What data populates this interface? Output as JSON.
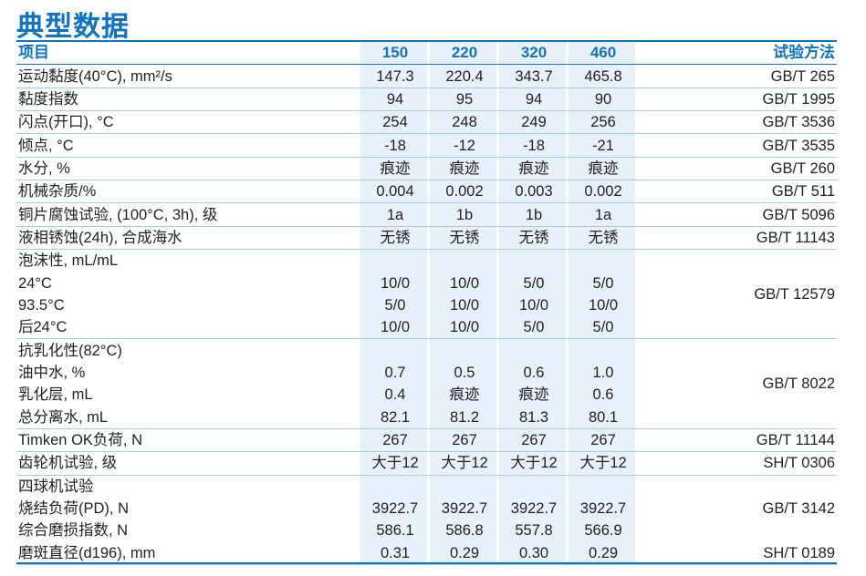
{
  "title": "典型数据",
  "header": {
    "item": "项目",
    "grades": [
      "150",
      "220",
      "320",
      "460"
    ],
    "method": "试验方法"
  },
  "rows": [
    {
      "item": "运动黏度(40°C), mm²/s",
      "values": [
        "147.3",
        "220.4",
        "343.7",
        "465.8"
      ],
      "method": "GB/T 265"
    },
    {
      "item": "黏度指数",
      "values": [
        "94",
        "95",
        "94",
        "90"
      ],
      "method": "GB/T 1995"
    },
    {
      "item": "闪点(开口), °C",
      "values": [
        "254",
        "248",
        "249",
        "256"
      ],
      "method": "GB/T 3536"
    },
    {
      "item": "倾点, °C",
      "values": [
        "-18",
        "-12",
        "-18",
        "-21"
      ],
      "method": "GB/T 3535"
    },
    {
      "item": "水分, %",
      "values": [
        "痕迹",
        "痕迹",
        "痕迹",
        "痕迹"
      ],
      "method": "GB/T 260"
    },
    {
      "item": "机械杂质/%",
      "values": [
        "0.004",
        "0.002",
        "0.003",
        "0.002"
      ],
      "method": "GB/T 511"
    },
    {
      "item": "铜片腐蚀试验, (100°C, 3h), 级",
      "values": [
        "1a",
        "1b",
        "1b",
        "1a"
      ],
      "method": "GB/T 5096"
    },
    {
      "item": "液相锈蚀(24h), 合成海水",
      "values": [
        "无锈",
        "无锈",
        "无锈",
        "无锈"
      ],
      "method": "GB/T 11143"
    }
  ],
  "foam": {
    "item": "泡沫性, mL/mL",
    "method": "GB/T 12579",
    "sub": [
      {
        "item": "24°C",
        "values": [
          "10/0",
          "10/0",
          "5/0",
          "5/0"
        ]
      },
      {
        "item": "93.5°C",
        "values": [
          "5/0",
          "10/0",
          "10/0",
          "10/0"
        ]
      },
      {
        "item": "后24°C",
        "values": [
          "10/0",
          "10/0",
          "5/0",
          "5/0"
        ]
      }
    ]
  },
  "demuls": {
    "item": "抗乳化性(82°C)",
    "method": "GB/T 8022",
    "sub": [
      {
        "item": "油中水, %",
        "values": [
          "0.7",
          "0.5",
          "0.6",
          "1.0"
        ]
      },
      {
        "item": "乳化层, mL",
        "values": [
          "0.4",
          "痕迹",
          "痕迹",
          "0.6"
        ]
      },
      {
        "item": "总分离水, mL",
        "values": [
          "82.1",
          "81.2",
          "81.3",
          "80.1"
        ]
      }
    ]
  },
  "rows2": [
    {
      "item": "Timken OK负荷, N",
      "values": [
        "267",
        "267",
        "267",
        "267"
      ],
      "method": "GB/T 11144"
    },
    {
      "item": "齿轮机试验, 级",
      "values": [
        "大于12",
        "大于12",
        "大于12",
        "大于12"
      ],
      "method": "SH/T 0306"
    }
  ],
  "fourball": {
    "item": "四球机试验",
    "sub": [
      {
        "item": "烧结负荷(PD), N",
        "values": [
          "3922.7",
          "3922.7",
          "3922.7",
          "3922.7"
        ],
        "method": "GB/T 3142"
      },
      {
        "item": "综合磨损指数, N",
        "values": [
          "586.1",
          "586.8",
          "557.8",
          "566.9"
        ],
        "method": ""
      },
      {
        "item": "磨斑直径(d196), mm",
        "values": [
          "0.31",
          "0.29",
          "0.30",
          "0.29"
        ],
        "method": "SH/T 0189"
      }
    ]
  }
}
